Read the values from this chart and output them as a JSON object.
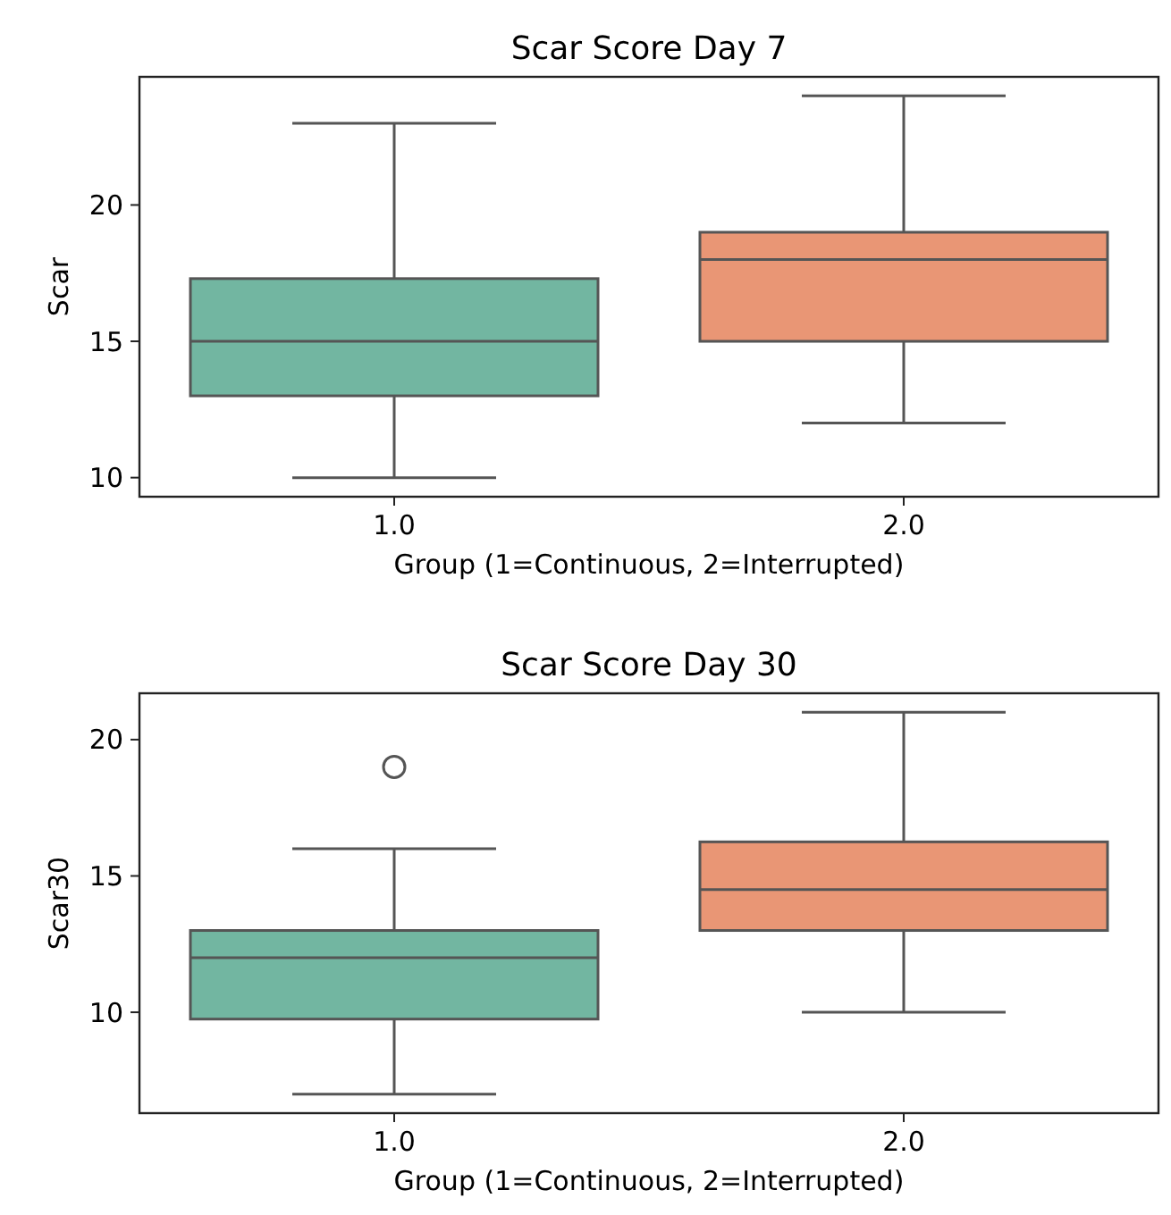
{
  "chart_data": [
    {
      "type": "box",
      "title": "Scar Score Day 7",
      "xlabel": "Group (1=Continuous, 2=Interrupted)",
      "ylabel": "Scar",
      "categories": [
        "1.0",
        "2.0"
      ],
      "colors": [
        "#72b6a1",
        "#e99675"
      ],
      "boxes": [
        {
          "low": 10,
          "q1": 13,
          "median": 15,
          "q3": 17.3,
          "high": 23
        },
        {
          "low": 12,
          "q1": 15,
          "median": 18,
          "q3": 19,
          "high": 24
        }
      ],
      "ylim": [
        9.3,
        24.7
      ],
      "yticks": [
        10,
        15,
        20
      ]
    },
    {
      "type": "box",
      "title": "Scar Score Day 30",
      "xlabel": "Group (1=Continuous, 2=Interrupted)",
      "ylabel": "Scar30",
      "categories": [
        "1.0",
        "2.0"
      ],
      "colors": [
        "#72b6a1",
        "#e99675"
      ],
      "boxes": [
        {
          "low": 7,
          "q1": 9.75,
          "median": 12,
          "q3": 13,
          "high": 16,
          "outliers": [
            19
          ]
        },
        {
          "low": 10,
          "q1": 13,
          "median": 14.5,
          "q3": 16.25,
          "high": 21
        }
      ],
      "ylim": [
        6.3,
        21.7
      ],
      "yticks": [
        10,
        15,
        20
      ]
    }
  ]
}
